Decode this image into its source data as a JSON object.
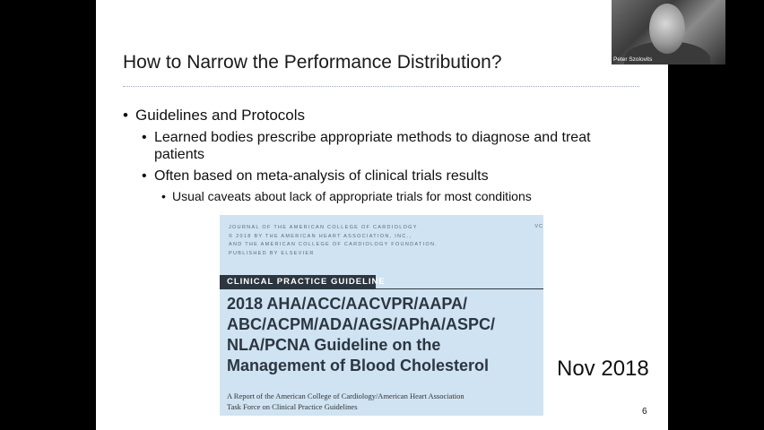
{
  "slide": {
    "title": "How to Narrow the Performance Distribution?",
    "bullets": {
      "l1": "Guidelines and Protocols",
      "l2a_line1": "Learned bodies prescribe appropriate methods to diagnose and treat",
      "l2a_line2": "patients",
      "l2b": "Often based on meta-analysis of clinical trials results",
      "l3": "Usual caveats about lack of appropriate trials for most conditions"
    },
    "bullet_char_main": "•",
    "bullet_char_sub": "•",
    "guideline": {
      "journal_lines": [
        "JOURNAL OF THE AMERICAN COLLEGE OF CARDIOLOGY",
        "© 2018 BY THE AMERICAN HEART ASSOCIATION, INC.,",
        "AND THE AMERICAN COLLEGE OF CARDIOLOGY FOUNDATION.",
        "PUBLISHED BY ELSEVIER"
      ],
      "corner_text": "VC",
      "banner": "CLINICAL PRACTICE GUIDELINE",
      "title_lines": [
        "2018 AHA/ACC/AACVPR/AAPA/",
        "ABC/ACPM/ADA/AGS/APhA/ASPC/",
        "NLA/PCNA Guideline on the",
        "Management of Blood Cholesterol"
      ],
      "report_lines": [
        "A Report of the American College of Cardiology/American Heart Association",
        "Task Force on Clinical Practice Guidelines"
      ]
    },
    "date_note": "Nov 2018",
    "page_number": "6"
  },
  "webcam": {
    "participant_name": "Peter Szolovits"
  }
}
